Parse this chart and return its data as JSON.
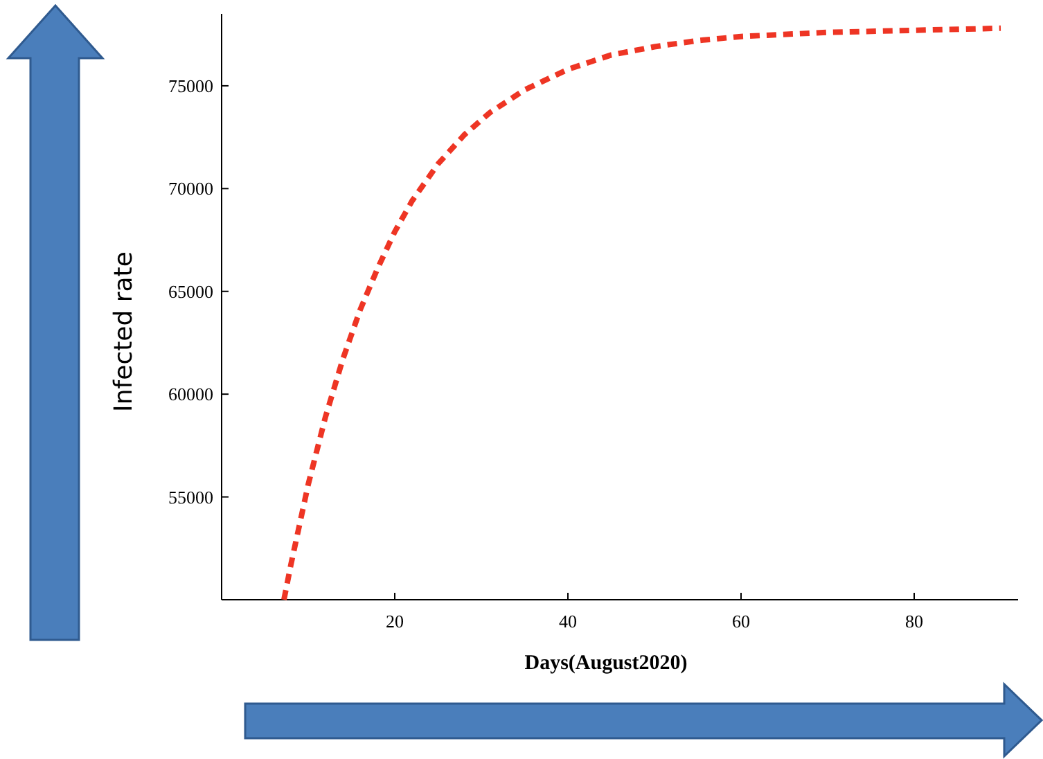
{
  "chart_data": {
    "type": "line",
    "xlabel": "Days(August2020)",
    "ylabel": "Infected rate",
    "xlim": [
      0,
      92
    ],
    "ylim": [
      50000,
      78500
    ],
    "xticks": [
      20,
      40,
      60,
      80
    ],
    "yticks": [
      {
        "value": 55000,
        "label": "55000"
      },
      {
        "value": 60000,
        "label": "60000"
      },
      {
        "value": 65000,
        "label": "65000"
      },
      {
        "value": 70000,
        "label": "70000"
      },
      {
        "value": 75000,
        "label": "75000"
      }
    ],
    "grid": false,
    "marker": "none",
    "line_style": "dashed",
    "series": [
      {
        "color": "#ee3524",
        "x": [
          7.2,
          8,
          10,
          12,
          14,
          16,
          18,
          20,
          22,
          25,
          28,
          31,
          35,
          40,
          45,
          50,
          55,
          60,
          70,
          80,
          90
        ],
        "values": [
          50000,
          51700,
          55600,
          58900,
          61700,
          64100,
          66100,
          67900,
          69400,
          71200,
          72600,
          73700,
          74800,
          75800,
          76500,
          76900,
          77200,
          77400,
          77600,
          77700,
          77800
        ]
      }
    ]
  }
}
